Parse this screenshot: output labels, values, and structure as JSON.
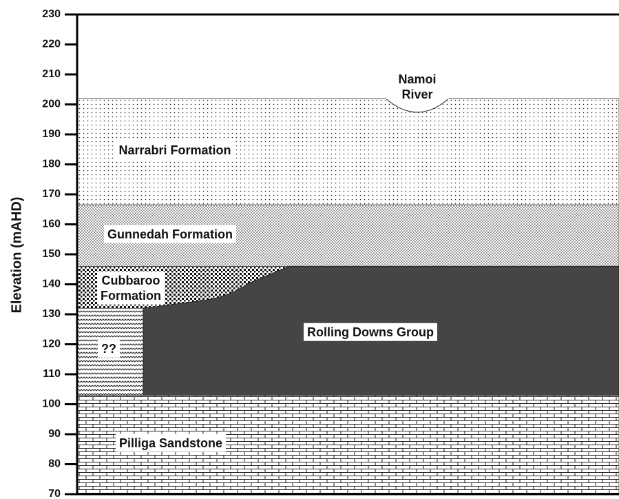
{
  "y_axis": {
    "label": "Elevation (mAHD)",
    "ylim": [
      70,
      230
    ],
    "yticks": [
      70,
      80,
      90,
      100,
      110,
      120,
      130,
      140,
      150,
      160,
      170,
      180,
      190,
      200,
      210,
      220,
      230
    ]
  },
  "river": {
    "label": [
      "Namoi",
      "River"
    ]
  },
  "layers": [
    {
      "label": [
        "Narrabri Formation"
      ],
      "top": 202,
      "bottom": 166.5
    },
    {
      "label": [
        "Gunnedah Formation"
      ],
      "top": 166.5,
      "bottom": 146
    },
    {
      "label": [
        "Pilliga Sandstone"
      ],
      "top": 103,
      "bottom": 70
    },
    {
      "label": [
        "Cubbaroo",
        "Formation"
      ],
      "top": 146,
      "bottom": 132
    },
    {
      "label": [
        "??"
      ],
      "top": 132,
      "bottom": 103
    },
    {
      "label": [
        "Rolling Downs Group"
      ],
      "top": 146,
      "bottom": 103
    }
  ]
}
